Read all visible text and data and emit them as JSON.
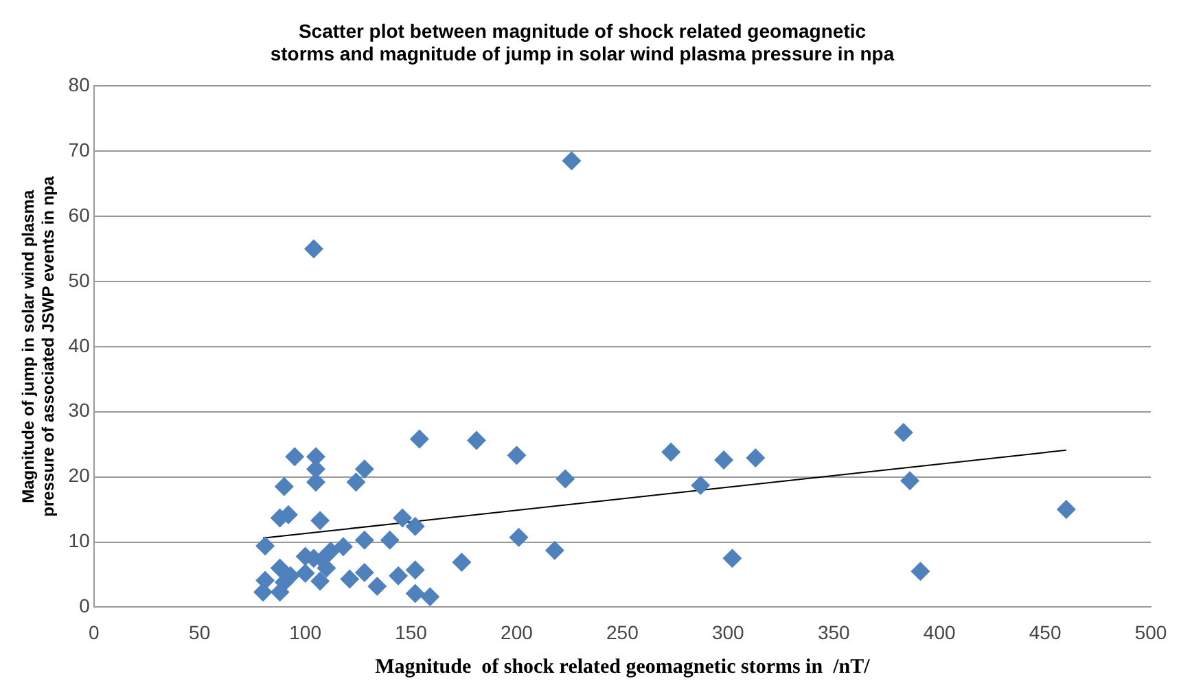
{
  "chart_data": {
    "type": "scatter",
    "title": "Scatter plot between magnitude of shock related geomagnetic storms and magnitude of jump in solar wind plasma pressure in npa",
    "xlabel": "Magnitude  of shock related geomagnetic storms in  /nT/",
    "ylabel": "Magnitude of jump in solar wind plasma pressure of associated JSWP events in npa",
    "xlim": [
      0,
      500
    ],
    "xticks": [
      0,
      50,
      100,
      150,
      200,
      250,
      300,
      350,
      400,
      450,
      500
    ],
    "ylim": [
      0,
      80
    ],
    "yticks": [
      0,
      10,
      20,
      30,
      40,
      50,
      60,
      70,
      80
    ],
    "grid": "y",
    "legend": false,
    "marker": "diamond",
    "series": [
      {
        "color": "#4f81bd",
        "x": [
          104,
          226,
          95,
          90,
          88,
          92,
          81,
          81,
          80,
          88,
          88,
          154,
          181,
          200,
          223,
          273,
          298,
          313,
          383,
          386,
          460,
          287,
          302,
          391,
          201,
          218,
          174,
          152,
          144,
          152,
          159,
          134,
          128,
          121,
          128,
          140,
          146,
          152,
          107,
          105,
          105,
          105,
          128,
          124,
          118,
          100,
          104,
          108,
          110,
          107,
          93,
          100,
          112,
          90
        ],
        "values": [
          55,
          68.5,
          23.1,
          18.5,
          13.7,
          14.2,
          9.4,
          4.1,
          2.3,
          6,
          2.3,
          25.8,
          25.6,
          23.3,
          19.7,
          23.8,
          22.6,
          22.9,
          26.8,
          19.4,
          15,
          18.7,
          7.5,
          5.5,
          10.7,
          8.7,
          6.9,
          5.7,
          4.8,
          2.1,
          1.6,
          3.2,
          5.3,
          4.3,
          10.3,
          10.3,
          13.7,
          12.4,
          13.3,
          23.1,
          21.2,
          19.2,
          21.2,
          19.2,
          9.3,
          7.8,
          7.5,
          7.3,
          6,
          4,
          4.8,
          5.2,
          8.6,
          3.8
        ]
      },
      {
        "type": "line",
        "color": "#000000",
        "marker": "none",
        "x": [
          80,
          460
        ],
        "values": [
          10.6,
          24.1
        ]
      }
    ]
  }
}
